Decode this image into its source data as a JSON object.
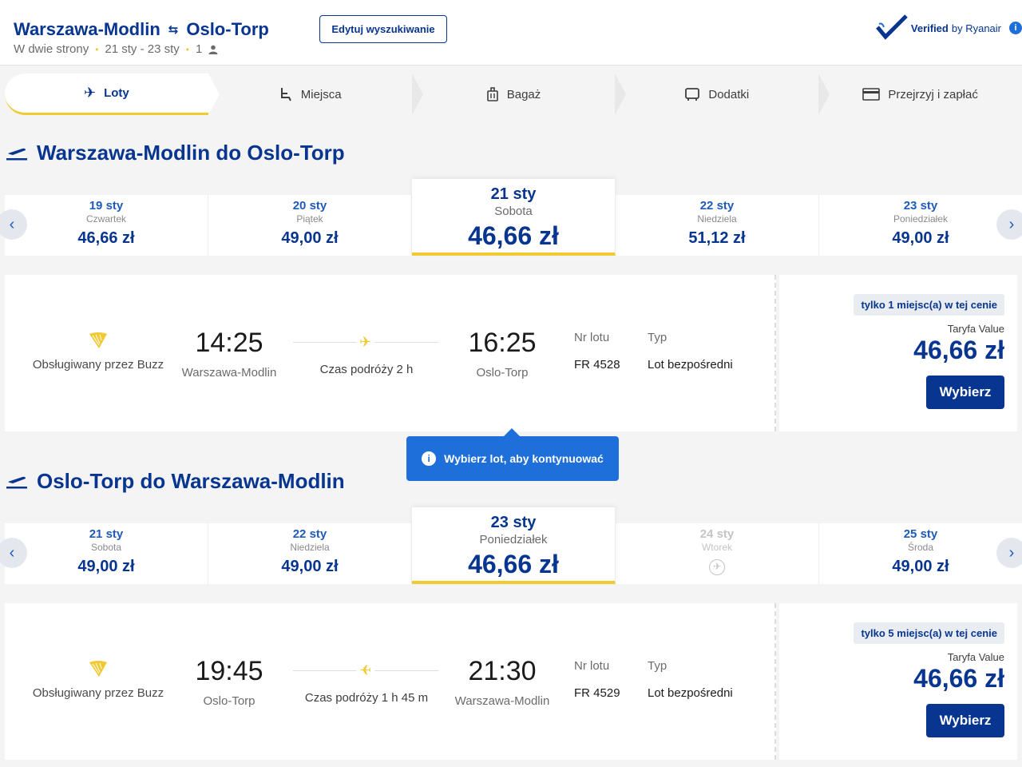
{
  "header": {
    "origin": "Warszawa-Modlin",
    "destination": "Oslo-Torp",
    "trip_type": "W dwie strony",
    "dates": "21 sty - 23 sty",
    "passengers": "1",
    "edit_button": "Edytuj wyszukiwanie",
    "verified_bold": "Verified",
    "verified_rest": " by Ryanair"
  },
  "steps": [
    {
      "label": "Loty",
      "icon": "plane-icon"
    },
    {
      "label": "Miejsca",
      "icon": "seat-icon"
    },
    {
      "label": "Bagaż",
      "icon": "luggage-icon"
    },
    {
      "label": "Dodatki",
      "icon": "extras-icon"
    },
    {
      "label": "Przejrzyj i zapłać",
      "icon": "card-icon"
    }
  ],
  "outbound": {
    "title": "Warszawa-Modlin do Oslo-Torp",
    "dates": [
      {
        "day": "19 sty",
        "weekday": "Czwartek",
        "price": "46,66 zł"
      },
      {
        "day": "20 sty",
        "weekday": "Piątek",
        "price": "49,00 zł"
      },
      {
        "day": "21 sty",
        "weekday": "Sobota",
        "price": "46,66 zł"
      },
      {
        "day": "22 sty",
        "weekday": "Niedziela",
        "price": "51,12 zł"
      },
      {
        "day": "23 sty",
        "weekday": "Poniedziałek",
        "price": "49,00 zł"
      }
    ],
    "flight": {
      "operator": "Obsługiwany przez Buzz",
      "dep_time": "14:25",
      "dep_place": "Warszawa-Modlin",
      "duration": "Czas podróży 2 h",
      "arr_time": "16:25",
      "arr_place": "Oslo-Torp",
      "flight_no_label": "Nr lotu",
      "flight_no": "FR 4528",
      "type_label": "Typ",
      "type": "Lot bezpośredni",
      "seats": "tylko 1 miejsc(a) w tej cenie",
      "fare_name": "Taryfa Value",
      "fare_price": "46,66 zł",
      "select": "Wybierz"
    }
  },
  "tooltip": "Wybierz lot, aby kontynuować",
  "inbound": {
    "title": "Oslo-Torp do Warszawa-Modlin",
    "dates": [
      {
        "day": "21 sty",
        "weekday": "Sobota",
        "price": "49,00 zł"
      },
      {
        "day": "22 sty",
        "weekday": "Niedziela",
        "price": "49,00 zł"
      },
      {
        "day": "23 sty",
        "weekday": "Poniedziałek",
        "price": "46,66 zł"
      },
      {
        "day": "24 sty",
        "weekday": "Wtorek",
        "price": ""
      },
      {
        "day": "25 sty",
        "weekday": "Środa",
        "price": "49,00 zł"
      }
    ],
    "flight": {
      "operator": "Obsługiwany przez Buzz",
      "dep_time": "19:45",
      "dep_place": "Oslo-Torp",
      "duration": "Czas podróży 1 h 45 m",
      "arr_time": "21:30",
      "arr_place": "Warszawa-Modlin",
      "flight_no_label": "Nr lotu",
      "flight_no": "FR 4529",
      "type_label": "Typ",
      "type": "Lot bezpośredni",
      "seats": "tylko 5 miejsc(a) w tej cenie",
      "fare_name": "Taryfa Value",
      "fare_price": "46,66 zł",
      "select": "Wybierz"
    }
  },
  "colors": {
    "brand": "#073590",
    "accent": "#f1c933",
    "info": "#1e6fd9"
  }
}
